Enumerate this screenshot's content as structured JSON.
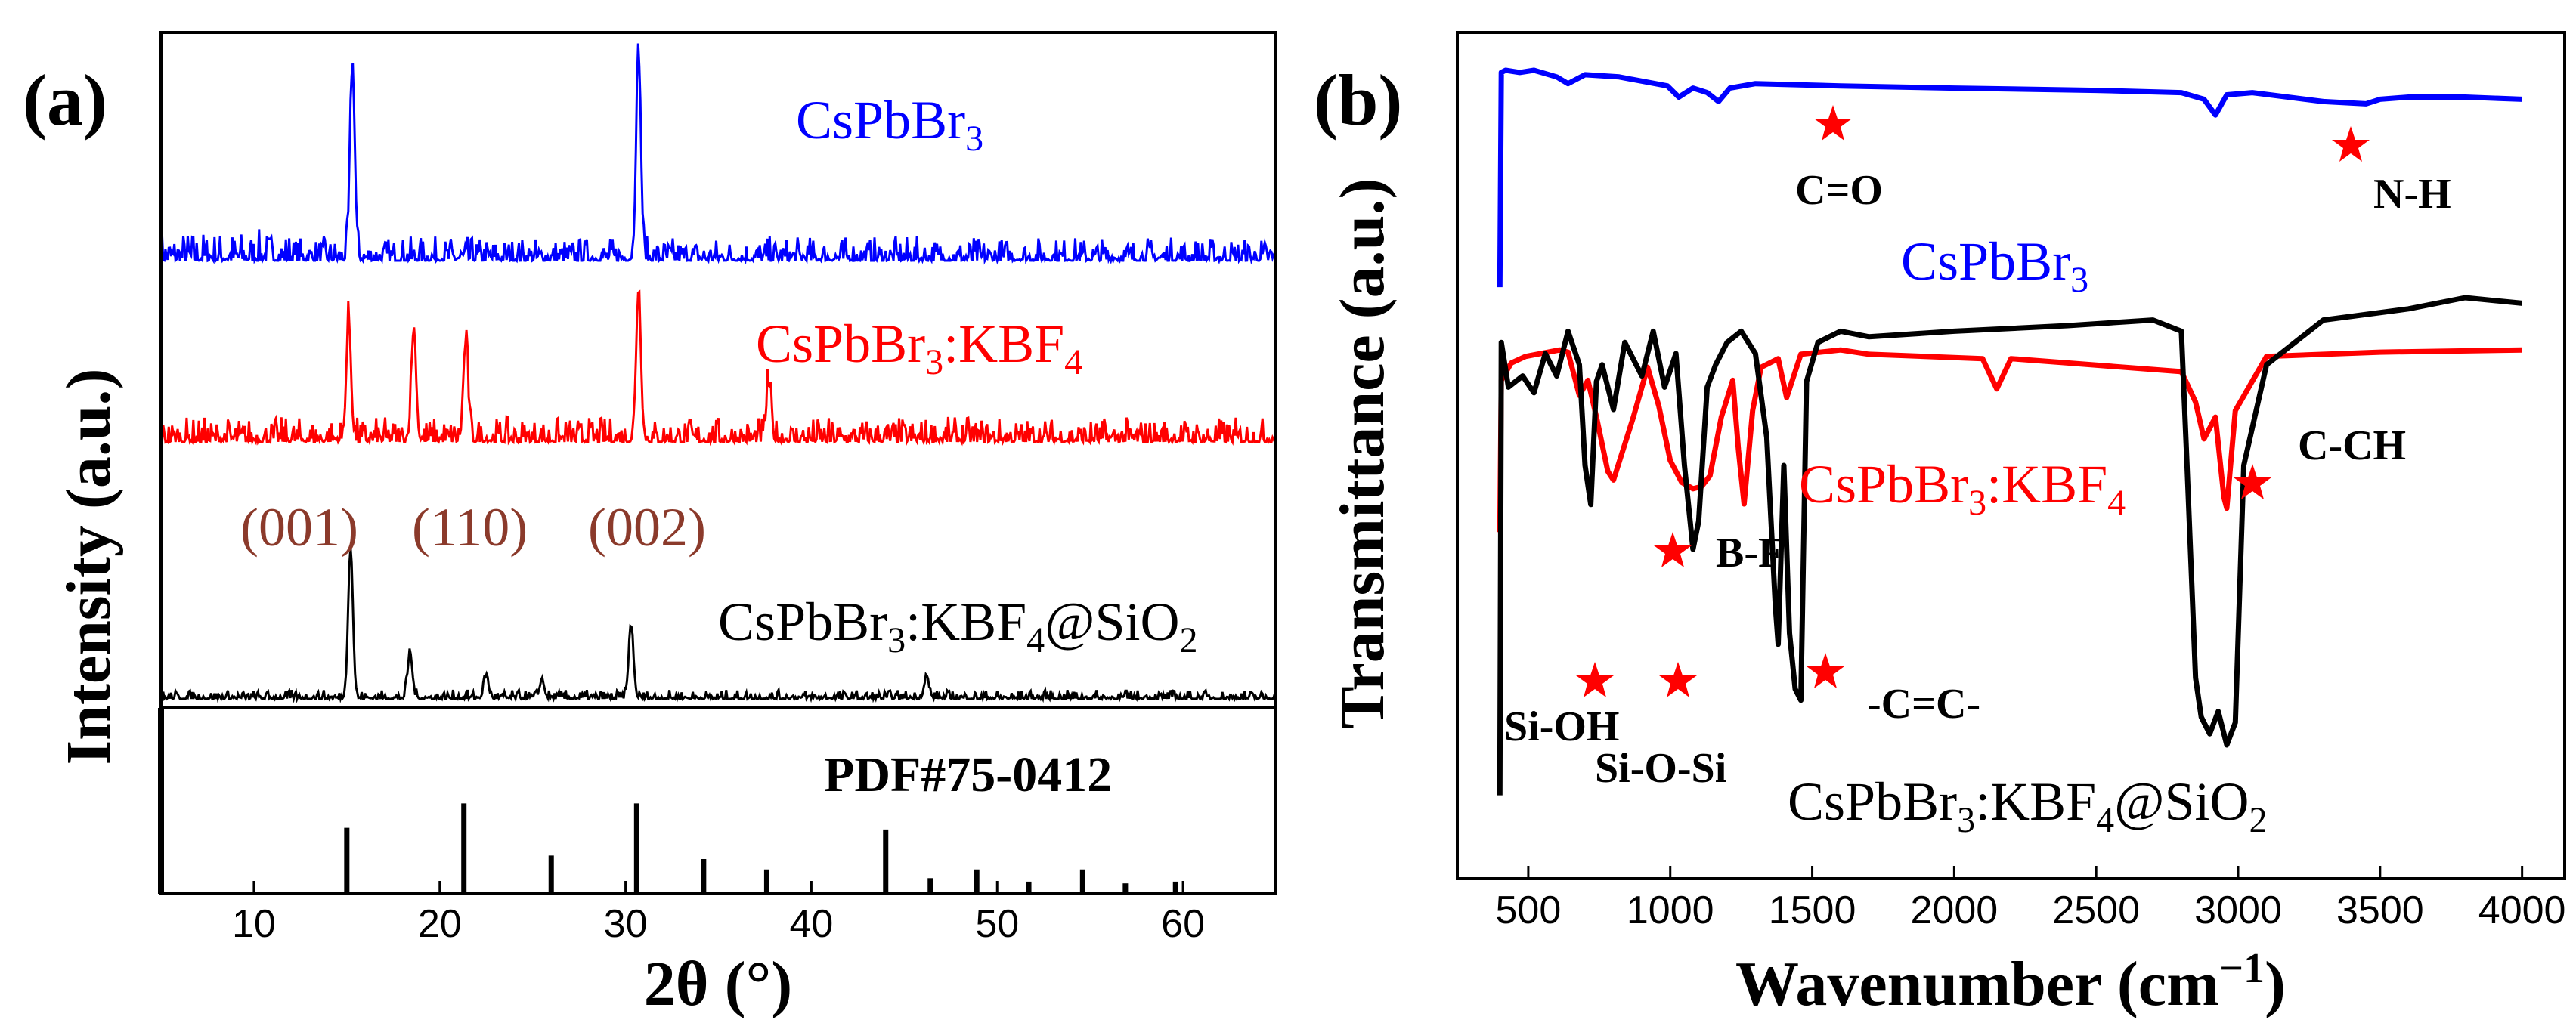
{
  "chart_data": [
    {
      "panel_label": "(a)",
      "type": "line",
      "title": "",
      "xlabel": "2θ (°)",
      "ylabel": "Intensity (a.u.)",
      "xlim": [
        5,
        65
      ],
      "xticks": [
        10,
        20,
        30,
        40,
        50,
        60
      ],
      "grid": false,
      "series": [
        {
          "name": "CsPbBr3",
          "label": {
            "main": "CsPbBr",
            "s1": "3",
            "tail": ""
          },
          "color": "#0000ff",
          "peaks": [
            {
              "x": 15.3,
              "rel": 0.95
            },
            {
              "x": 30.7,
              "rel": 1.0
            }
          ],
          "noise": 0.12
        },
        {
          "name": "CsPbBr3:KBF4",
          "label": {
            "main": "CsPbBr",
            "s1": "3",
            "mid": ":KBF",
            "s2": "4",
            "tail": ""
          },
          "color": "#ff0000",
          "peaks": [
            {
              "x": 15.1,
              "rel": 0.75
            },
            {
              "x": 18.6,
              "rel": 0.7
            },
            {
              "x": 21.4,
              "rel": 0.62
            },
            {
              "x": 30.7,
              "rel": 0.95
            },
            {
              "x": 37.7,
              "rel": 0.35
            }
          ],
          "noise": 0.16
        },
        {
          "name": "CsPbBr3:KBF4@SiO2",
          "label": {
            "main": "CsPbBr",
            "s1": "3",
            "mid": ":KBF",
            "s2": "4",
            "mid2": "@SiO",
            "s3": "2"
          },
          "color": "#000000",
          "peaks": [
            {
              "x": 15.2,
              "rel": 1.0
            },
            {
              "x": 18.4,
              "rel": 0.3
            },
            {
              "x": 22.5,
              "rel": 0.15
            },
            {
              "x": 25.5,
              "rel": 0.12
            },
            {
              "x": 30.3,
              "rel": 0.48
            },
            {
              "x": 46.2,
              "rel": 0.14
            }
          ],
          "noise": 0.06
        }
      ],
      "annotations": [
        "(001)",
        "(110)",
        "(002)"
      ],
      "reference": {
        "label": "PDF#75-0412",
        "sticks": [
          {
            "x": 15.0,
            "rel": 0.38
          },
          {
            "x": 21.3,
            "rel": 0.52
          },
          {
            "x": 26.0,
            "rel": 0.22
          },
          {
            "x": 30.6,
            "rel": 0.52
          },
          {
            "x": 34.2,
            "rel": 0.2
          },
          {
            "x": 37.6,
            "rel": 0.14
          },
          {
            "x": 44.0,
            "rel": 0.37
          },
          {
            "x": 46.4,
            "rel": 0.09
          },
          {
            "x": 48.9,
            "rel": 0.14
          },
          {
            "x": 51.7,
            "rel": 0.07
          },
          {
            "x": 54.6,
            "rel": 0.14
          },
          {
            "x": 56.9,
            "rel": 0.06
          },
          {
            "x": 59.6,
            "rel": 0.07
          }
        ]
      }
    },
    {
      "panel_label": "(b)",
      "type": "line",
      "title": "",
      "xlabel": {
        "main": "Wavenumber (cm",
        "sup": "−1",
        "tail": ")"
      },
      "ylabel": "Transmittance (a.u.)",
      "xlim": [
        250,
        4150
      ],
      "xticks": [
        500,
        1000,
        1500,
        2000,
        2500,
        3000,
        3500,
        4000
      ],
      "grid": false,
      "series": [
        {
          "name": "CsPbBr3",
          "label": {
            "main": "CsPbBr",
            "s1": "3",
            "tail": ""
          },
          "color": "#0000ff",
          "x": [
            400,
            405,
            420,
            470,
            520,
            600,
            640,
            700,
            820,
            990,
            1030,
            1080,
            1130,
            1170,
            1210,
            1300,
            1600,
            2000,
            2500,
            2800,
            2880,
            2920,
            2960,
            3050,
            3300,
            3450,
            3500,
            3600,
            3800,
            4000
          ],
          "y": [
            2,
            98,
            99,
            98,
            99,
            96,
            93,
            97,
            96,
            92,
            87,
            91,
            89,
            85,
            91,
            93,
            92,
            91,
            90,
            89,
            86,
            79,
            88,
            89,
            85,
            84,
            86,
            87,
            87,
            86
          ]
        },
        {
          "name": "CsPbBr3:KBF4",
          "label": {
            "main": "CsPbBr",
            "s1": "3",
            "mid": ":KBF",
            "s2": "4",
            "tail": ""
          },
          "color": "#ff0000",
          "x": [
            400,
            405,
            440,
            490,
            530,
            610,
            640,
            680,
            710,
            740,
            780,
            800,
            870,
            920,
            960,
            1000,
            1040,
            1080,
            1110,
            1140,
            1180,
            1220,
            1240,
            1260,
            1290,
            1320,
            1380,
            1410,
            1460,
            1600,
            1700,
            2100,
            2150,
            2200,
            2400,
            2800,
            2850,
            2880,
            2920,
            2950,
            2960,
            2990,
            3100,
            3500,
            4000
          ],
          "y": [
            2,
            72,
            80,
            83,
            84,
            86,
            85,
            65,
            72,
            55,
            30,
            26,
            55,
            78,
            60,
            35,
            25,
            22,
            23,
            28,
            55,
            72,
            40,
            15,
            58,
            78,
            82,
            64,
            84,
            86,
            84,
            82,
            68,
            82,
            80,
            76,
            62,
            45,
            55,
            18,
            13,
            58,
            83,
            85,
            86
          ]
        },
        {
          "name": "CsPbBr3:KBF4@SiO2",
          "label": {
            "main": "CsPbBr",
            "s1": "3",
            "mid": ":KBF",
            "s2": "4",
            "mid2": "@SiO",
            "s3": "2"
          },
          "color": "#000000",
          "x": [
            400,
            405,
            430,
            480,
            520,
            560,
            600,
            640,
            680,
            700,
            720,
            740,
            760,
            800,
            840,
            900,
            940,
            980,
            1020,
            1050,
            1080,
            1100,
            1130,
            1160,
            1200,
            1250,
            1300,
            1340,
            1370,
            1380,
            1400,
            1420,
            1440,
            1460,
            1480,
            1520,
            1600,
            1700,
            2000,
            2400,
            2700,
            2800,
            2820,
            2850,
            2870,
            2900,
            2930,
            2960,
            2990,
            3020,
            3100,
            3300,
            3600,
            3800,
            4000
          ],
          "y": [
            1,
            82,
            74,
            76,
            73,
            80,
            76,
            84,
            78,
            60,
            53,
            75,
            78,
            70,
            82,
            76,
            84,
            74,
            80,
            60,
            45,
            50,
            74,
            78,
            82,
            84,
            80,
            65,
            35,
            28,
            60,
            30,
            20,
            18,
            75,
            82,
            84,
            83,
            84,
            85,
            86,
            84,
            60,
            22,
            15,
            12,
            16,
            10,
            14,
            60,
            78,
            86,
            88,
            90,
            89
          ]
        }
      ],
      "annotations": [
        "C=O",
        "N-H",
        "C-CH",
        "B-F",
        "Si-OH",
        "Si-O-Si",
        "-C=C-"
      ]
    }
  ]
}
